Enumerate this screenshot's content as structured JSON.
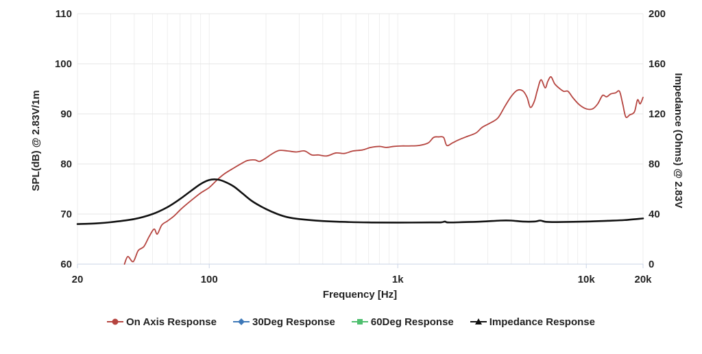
{
  "chart_data": {
    "type": "line",
    "xlabel": "Frequency [Hz]",
    "ylabel": "SPL(dB) @ 2.83V/1m",
    "y2label": "Impedance (Ohms) @ 2.83V",
    "xscale": "log",
    "xlim": [
      20,
      20000
    ],
    "ylim": [
      60,
      110
    ],
    "y2lim": [
      0,
      200
    ],
    "x_ticks": [
      {
        "value": 20,
        "label": "20"
      },
      {
        "value": 100,
        "label": "100"
      },
      {
        "value": 1000,
        "label": "1k"
      },
      {
        "value": 10000,
        "label": "10k"
      },
      {
        "value": 20000,
        "label": "20k"
      }
    ],
    "y_ticks": [
      "60",
      "70",
      "80",
      "90",
      "100",
      "110"
    ],
    "y2_ticks": [
      "0",
      "40",
      "80",
      "120",
      "160",
      "200"
    ],
    "grid": true,
    "legend_position": "bottom",
    "series": [
      {
        "name": "On Axis Response",
        "color": "#b5443f",
        "marker": "circle",
        "axis": "left",
        "points": [
          [
            35.5,
            60
          ],
          [
            37,
            61.5
          ],
          [
            39.5,
            60.5
          ],
          [
            42,
            62.7
          ],
          [
            45,
            63.5
          ],
          [
            48,
            65.5
          ],
          [
            51,
            67
          ],
          [
            53,
            66
          ],
          [
            56,
            67.8
          ],
          [
            60,
            68.6
          ],
          [
            65,
            69.6
          ],
          [
            70,
            70.8
          ],
          [
            75,
            71.8
          ],
          [
            82,
            73
          ],
          [
            90,
            74.2
          ],
          [
            100,
            75.3
          ],
          [
            110,
            76.8
          ],
          [
            120,
            78
          ],
          [
            135,
            79.2
          ],
          [
            150,
            80.2
          ],
          [
            160,
            80.7
          ],
          [
            175,
            80.8
          ],
          [
            185,
            80.5
          ],
          [
            200,
            81.2
          ],
          [
            215,
            82
          ],
          [
            235,
            82.7
          ],
          [
            260,
            82.6
          ],
          [
            290,
            82.4
          ],
          [
            320,
            82.6
          ],
          [
            350,
            81.8
          ],
          [
            380,
            81.8
          ],
          [
            420,
            81.6
          ],
          [
            470,
            82.2
          ],
          [
            520,
            82.1
          ],
          [
            580,
            82.6
          ],
          [
            650,
            82.8
          ],
          [
            720,
            83.3
          ],
          [
            800,
            83.5
          ],
          [
            870,
            83.3
          ],
          [
            950,
            83.5
          ],
          [
            1050,
            83.6
          ],
          [
            1150,
            83.6
          ],
          [
            1300,
            83.7
          ],
          [
            1450,
            84.2
          ],
          [
            1550,
            85.3
          ],
          [
            1650,
            85.4
          ],
          [
            1750,
            85.3
          ],
          [
            1820,
            83.7
          ],
          [
            1950,
            84.2
          ],
          [
            2100,
            84.8
          ],
          [
            2300,
            85.4
          ],
          [
            2600,
            86.2
          ],
          [
            2800,
            87.3
          ],
          [
            3100,
            88.2
          ],
          [
            3400,
            89.2
          ],
          [
            3700,
            91.5
          ],
          [
            4000,
            93.5
          ],
          [
            4300,
            94.7
          ],
          [
            4600,
            94.6
          ],
          [
            4850,
            93.3
          ],
          [
            5050,
            91.3
          ],
          [
            5300,
            92.5
          ],
          [
            5500,
            94.7
          ],
          [
            5750,
            96.8
          ],
          [
            6050,
            95.2
          ],
          [
            6250,
            96.5
          ],
          [
            6500,
            97.4
          ],
          [
            6800,
            96
          ],
          [
            7200,
            95.1
          ],
          [
            7600,
            94.5
          ],
          [
            8000,
            94.5
          ],
          [
            8500,
            93.2
          ],
          [
            9200,
            91.8
          ],
          [
            10000,
            91
          ],
          [
            10800,
            91
          ],
          [
            11500,
            92
          ],
          [
            12200,
            93.7
          ],
          [
            12800,
            93.4
          ],
          [
            13500,
            94
          ],
          [
            14300,
            94.2
          ],
          [
            15000,
            94.5
          ],
          [
            15600,
            92
          ],
          [
            16200,
            89.4
          ],
          [
            17000,
            89.8
          ],
          [
            18000,
            90.4
          ],
          [
            18700,
            92.8
          ],
          [
            19300,
            92
          ],
          [
            20000,
            93.3
          ]
        ]
      },
      {
        "name": "30Deg Response",
        "color": "#3d78b8",
        "marker": "diamond",
        "axis": "left",
        "points": []
      },
      {
        "name": "60Deg Response",
        "color": "#4fbf6f",
        "marker": "square",
        "axis": "left",
        "points": []
      },
      {
        "name": "Impedance Response",
        "color": "#111111",
        "marker": "triangle",
        "axis": "right",
        "points": [
          [
            20,
            32
          ],
          [
            25,
            32.5
          ],
          [
            30,
            33.5
          ],
          [
            40,
            36
          ],
          [
            50,
            40
          ],
          [
            60,
            45.5
          ],
          [
            70,
            52
          ],
          [
            80,
            58.5
          ],
          [
            90,
            64
          ],
          [
            100,
            67.2
          ],
          [
            110,
            67.6
          ],
          [
            120,
            66
          ],
          [
            135,
            62
          ],
          [
            150,
            56.5
          ],
          [
            170,
            50
          ],
          [
            200,
            44
          ],
          [
            230,
            40
          ],
          [
            260,
            37.5
          ],
          [
            300,
            36
          ],
          [
            400,
            34.4
          ],
          [
            500,
            33.8
          ],
          [
            700,
            33.3
          ],
          [
            1000,
            33.2
          ],
          [
            1500,
            33.3
          ],
          [
            1700,
            33.4
          ],
          [
            1780,
            34
          ],
          [
            1850,
            33.3
          ],
          [
            2200,
            33.5
          ],
          [
            2800,
            34
          ],
          [
            3500,
            34.8
          ],
          [
            4000,
            34.8
          ],
          [
            4600,
            34
          ],
          [
            5300,
            34
          ],
          [
            5700,
            34.8
          ],
          [
            6100,
            33.8
          ],
          [
            7000,
            33.6
          ],
          [
            10000,
            34
          ],
          [
            13000,
            34.6
          ],
          [
            16000,
            35.2
          ],
          [
            20000,
            36.5
          ]
        ]
      }
    ]
  }
}
